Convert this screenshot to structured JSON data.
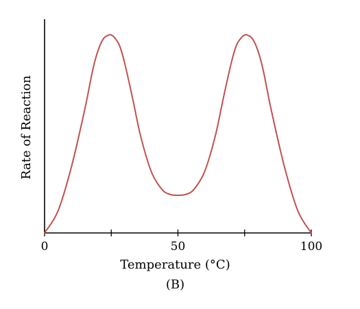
{
  "chart_data": {
    "type": "line",
    "title": "",
    "xlabel": "Temperature (°C)",
    "ylabel": "Rate of Reaction",
    "panel_label": "(B)",
    "xlim": [
      0,
      100
    ],
    "ylim": [
      0,
      1.08
    ],
    "x_ticks": [
      0,
      25,
      50,
      75,
      100
    ],
    "x_tick_labels": [
      "0",
      "",
      "50",
      "",
      "100"
    ],
    "y_ticks": [],
    "grid": false,
    "legend": "none",
    "series": [
      {
        "color": "#c0504d",
        "x": [
          0,
          5,
          10,
          15,
          18,
          20,
          22,
          24,
          25,
          26,
          28,
          30,
          33,
          36,
          40,
          44,
          47,
          50,
          53,
          56,
          60,
          64,
          67,
          70,
          72,
          74,
          75,
          76,
          78,
          80,
          82,
          85,
          90,
          95,
          100
        ],
        "y": [
          0.0,
          0.11,
          0.33,
          0.62,
          0.82,
          0.92,
          0.98,
          1.0,
          1.0,
          0.99,
          0.95,
          0.86,
          0.68,
          0.49,
          0.31,
          0.22,
          0.195,
          0.19,
          0.195,
          0.22,
          0.31,
          0.49,
          0.68,
          0.86,
          0.95,
          0.99,
          1.0,
          1.0,
          0.98,
          0.92,
          0.82,
          0.62,
          0.33,
          0.11,
          0.0
        ]
      }
    ]
  }
}
